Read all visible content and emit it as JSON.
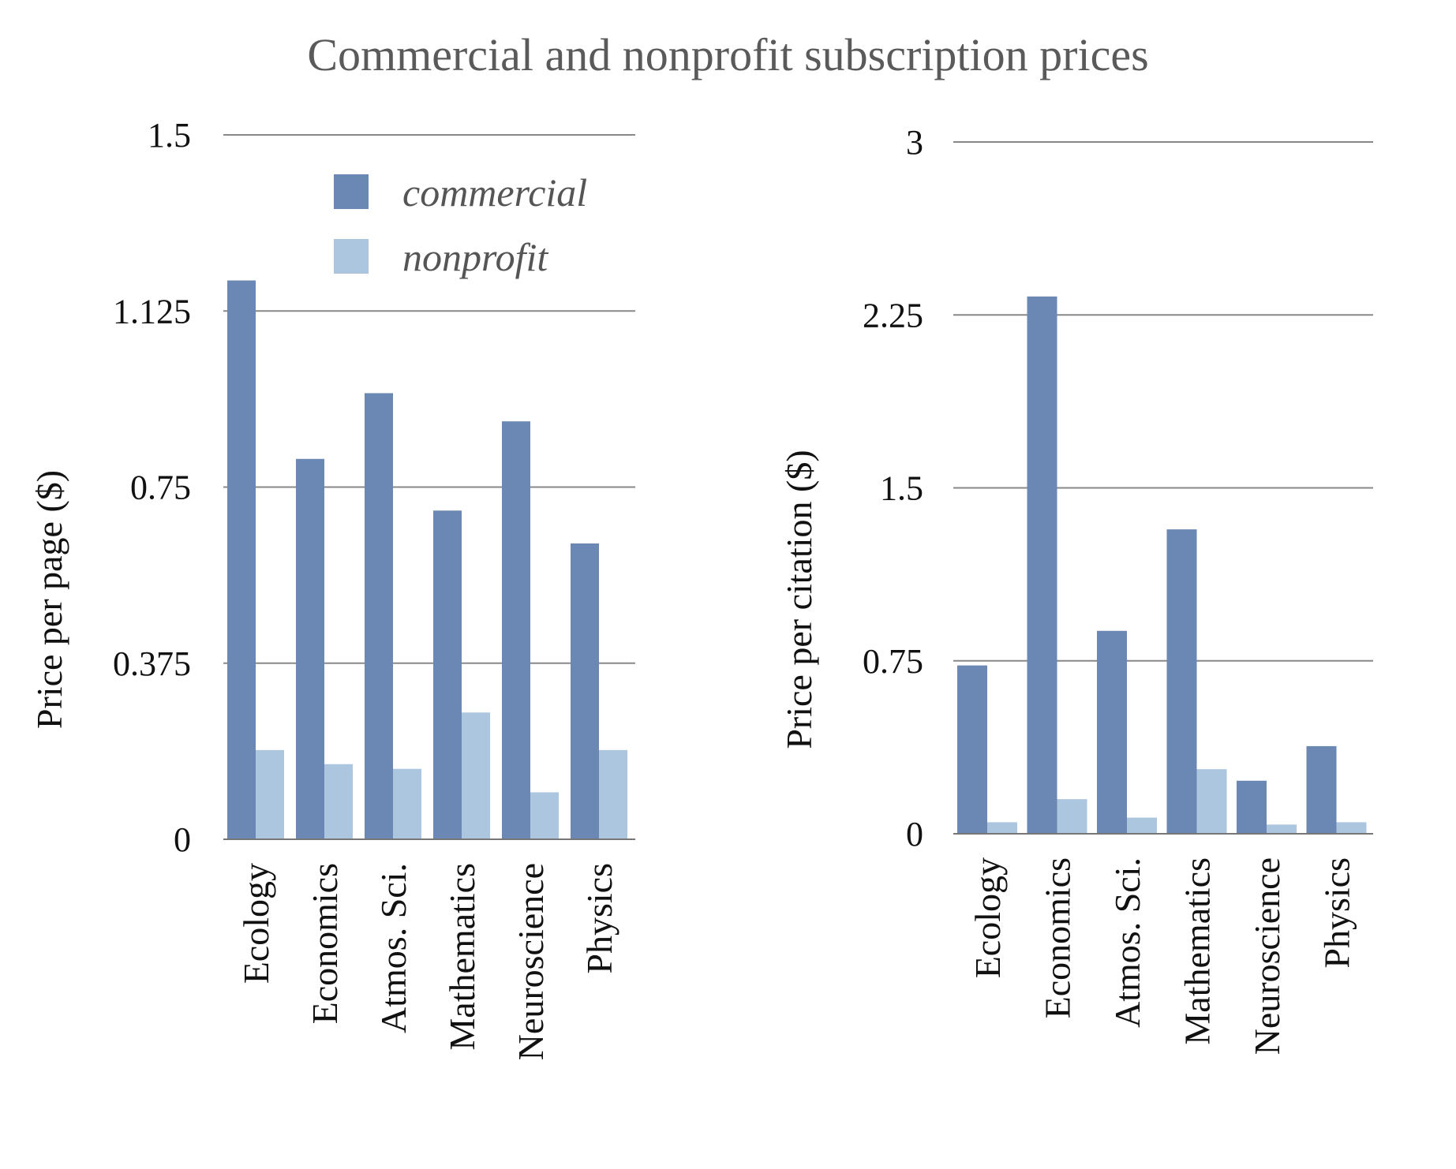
{
  "title": "Commercial and nonprofit subscription prices",
  "colors": {
    "commercial": "#6b87b4",
    "nonprofit": "#adc6e0",
    "grid": "#888888",
    "title": "#5a5a5a"
  },
  "legend": {
    "commercial": "commercial",
    "nonprofit": "nonprofit"
  },
  "chart_data": [
    {
      "type": "bar",
      "title": "",
      "xlabel": "",
      "ylabel": "Price per page ($)",
      "ylim": [
        0,
        1.5
      ],
      "yticks": [
        0,
        0.375,
        0.75,
        1.125,
        1.5
      ],
      "ytick_labels": [
        "0",
        "0.375",
        "0.75",
        "1.125",
        "1.5"
      ],
      "categories": [
        "Ecology",
        "Economics",
        "Atmos. Sci.",
        "Mathematics",
        "Neuroscience",
        "Physics"
      ],
      "series": [
        {
          "name": "commercial",
          "values": [
            1.19,
            0.81,
            0.95,
            0.7,
            0.89,
            0.63
          ]
        },
        {
          "name": "nonprofit",
          "values": [
            0.19,
            0.16,
            0.15,
            0.27,
            0.1,
            0.19
          ]
        }
      ],
      "legend_position": "top-right"
    },
    {
      "type": "bar",
      "title": "",
      "xlabel": "",
      "ylabel": "Price per citation ($)",
      "ylim": [
        0,
        3
      ],
      "yticks": [
        0,
        0.75,
        1.5,
        2.25,
        3
      ],
      "ytick_labels": [
        "0",
        "0.75",
        "1.5",
        "2.25",
        "3"
      ],
      "categories": [
        "Ecology",
        "Economics",
        "Atmos. Sci.",
        "Mathematics",
        "Neuroscience",
        "Physics"
      ],
      "series": [
        {
          "name": "commercial",
          "values": [
            0.73,
            2.33,
            0.88,
            1.32,
            0.23,
            0.38
          ]
        },
        {
          "name": "nonprofit",
          "values": [
            0.05,
            0.15,
            0.07,
            0.28,
            0.04,
            0.05
          ]
        }
      ]
    }
  ]
}
